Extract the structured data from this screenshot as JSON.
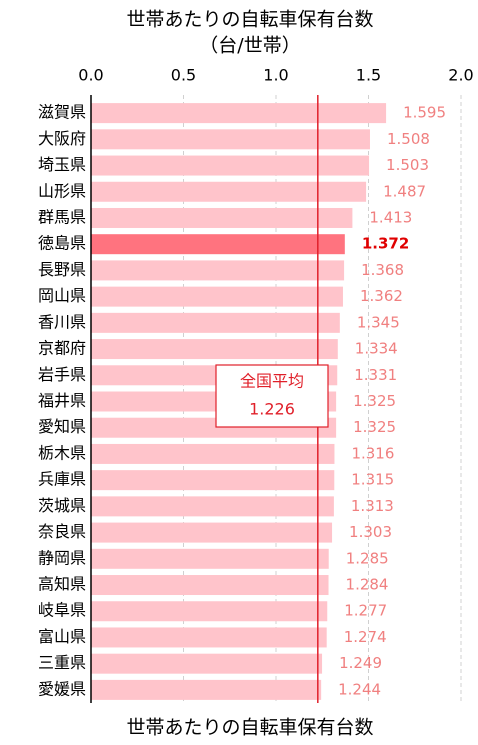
{
  "chart_data": {
    "type": "bar",
    "orientation": "horizontal",
    "title": "世帯あたりの自転車保有台数",
    "subtitle": "（台/世帯）",
    "x_label": "世帯あたりの自転車保有台数",
    "categories": [
      "滋賀県",
      "大阪府",
      "埼玉県",
      "山形県",
      "群馬県",
      "徳島県",
      "長野県",
      "岡山県",
      "香川県",
      "京都府",
      "岩手県",
      "福井県",
      "愛知県",
      "栃木県",
      "兵庫県",
      "茨城県",
      "奈良県",
      "静岡県",
      "高知県",
      "岐阜県",
      "富山県",
      "三重県",
      "愛媛県"
    ],
    "values": [
      1.595,
      1.508,
      1.503,
      1.487,
      1.413,
      1.372,
      1.368,
      1.362,
      1.345,
      1.334,
      1.331,
      1.325,
      1.325,
      1.316,
      1.315,
      1.313,
      1.303,
      1.285,
      1.284,
      1.277,
      1.274,
      1.249,
      1.244
    ],
    "color": "#ffc4cb",
    "label_color": "#f08080",
    "highlight": "徳島県",
    "highlight_color": "#ff737f",
    "highlight_label_color": "#e00000",
    "xlim": [
      0,
      2.0
    ],
    "xticks": [
      {
        "value": 0,
        "label": "0.0"
      },
      {
        "value": 0.5,
        "label": "0.5"
      },
      {
        "value": 1,
        "label": "1.0"
      },
      {
        "value": 1.5,
        "label": "1.5"
      },
      {
        "value": 2,
        "label": "2.0"
      }
    ],
    "grid": true,
    "annotation": {
      "label": "全国平均",
      "value": 1.226,
      "color": "#e0202a"
    }
  }
}
